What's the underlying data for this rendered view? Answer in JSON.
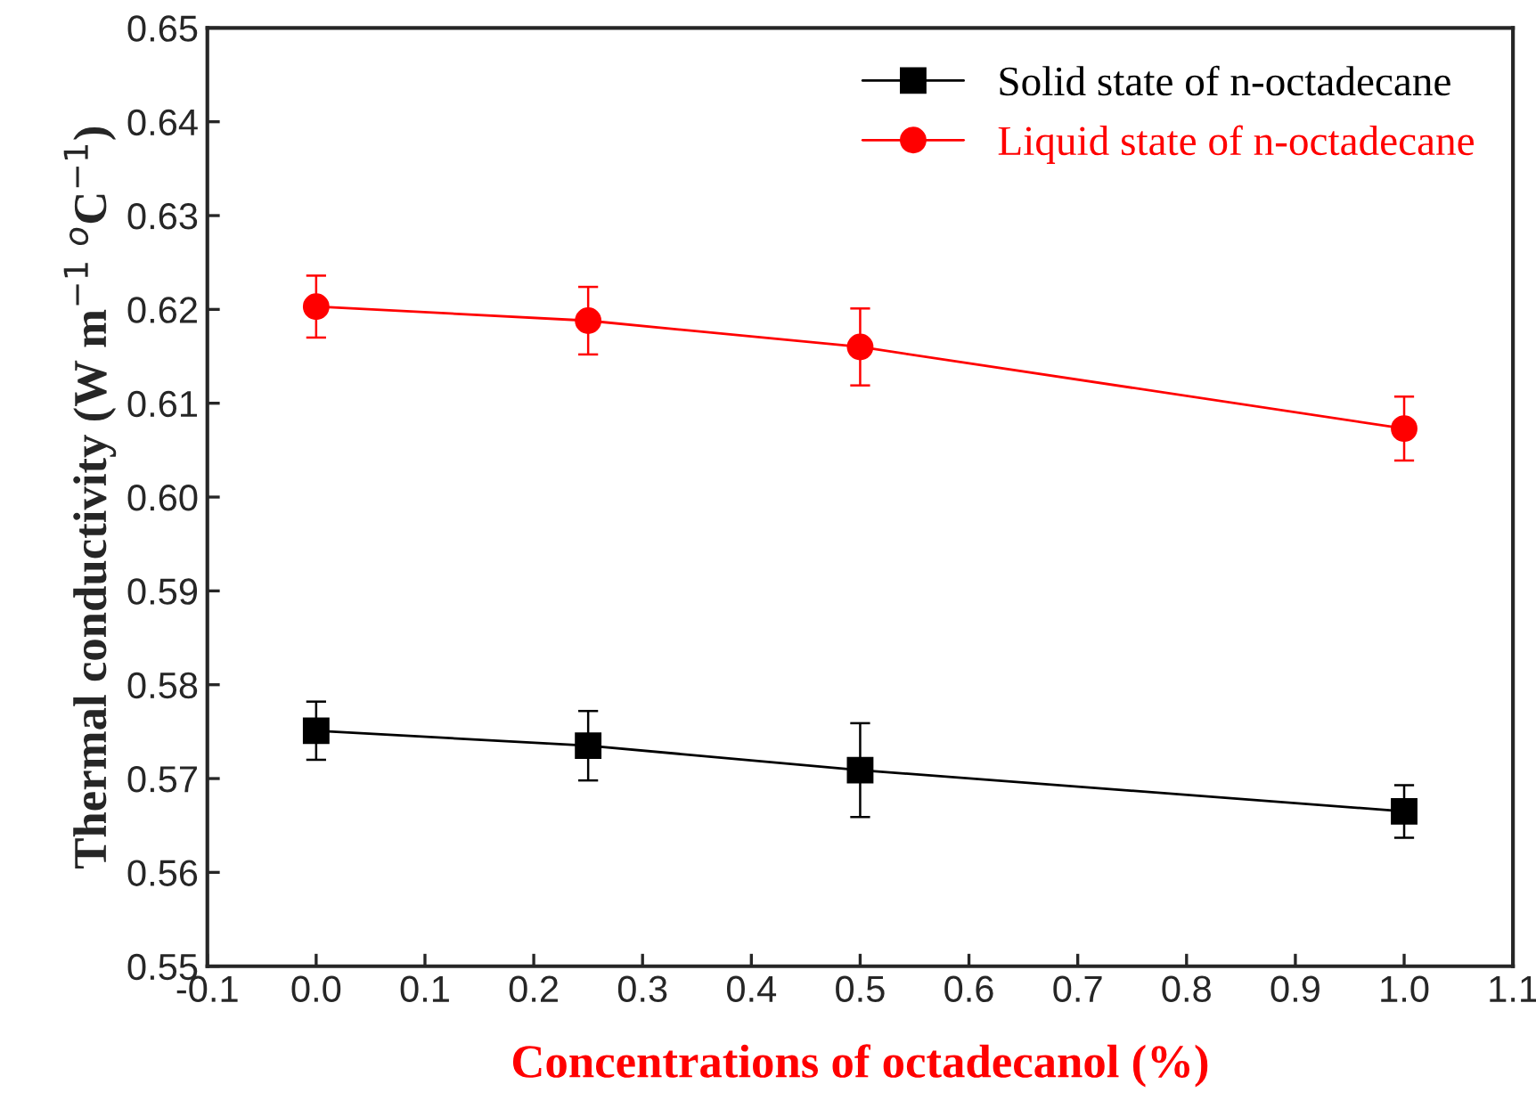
{
  "chart_data": {
    "type": "line",
    "xlabel": "Concentrations of octadecanol (%)",
    "ylabel": "Thermal conductivity (W m$^{−1}$ $^{o}$C$^{−1}$)",
    "x": [
      0.0,
      0.25,
      0.5,
      1.0
    ],
    "series": [
      {
        "name": "Solid state of n-octadecane",
        "color": "#000000",
        "marker": "square",
        "values": [
          0.5751,
          0.5735,
          0.5709,
          0.5665
        ],
        "errors": [
          0.0031,
          0.0037,
          0.005,
          0.0028
        ]
      },
      {
        "name": "Liquid state of n-octadecane",
        "color": "#ff0000",
        "marker": "circle",
        "values": [
          0.6203,
          0.6188,
          0.616,
          0.6073
        ],
        "errors": [
          0.0033,
          0.0036,
          0.0041,
          0.0034
        ]
      }
    ],
    "xlim": [
      -0.1,
      1.1
    ],
    "xticks": [
      {
        "value": -0.1,
        "label": "-0.1"
      },
      {
        "value": 0.0,
        "label": "0.0"
      },
      0.1,
      0.2,
      0.3,
      0.4,
      0.5,
      0.6,
      0.7,
      0.8,
      0.9,
      {
        "value": 1.0,
        "label": "1.0"
      },
      1.1
    ],
    "ylim": [
      0.55,
      0.65
    ],
    "yticks": [
      {
        "value": 0.55,
        "label": "0.55"
      },
      {
        "value": 0.56,
        "label": "0.56"
      },
      {
        "value": 0.57,
        "label": "0.57"
      },
      {
        "value": 0.58,
        "label": "0.58"
      },
      {
        "value": 0.59,
        "label": "0.59"
      },
      {
        "value": 0.6,
        "label": "0.60"
      },
      {
        "value": 0.61,
        "label": "0.61"
      },
      {
        "value": 0.62,
        "label": "0.62"
      },
      {
        "value": 0.63,
        "label": "0.63"
      },
      {
        "value": 0.64,
        "label": "0.64"
      },
      {
        "value": 0.65,
        "label": "0.65"
      }
    ],
    "legend": "top right",
    "grid": false
  }
}
